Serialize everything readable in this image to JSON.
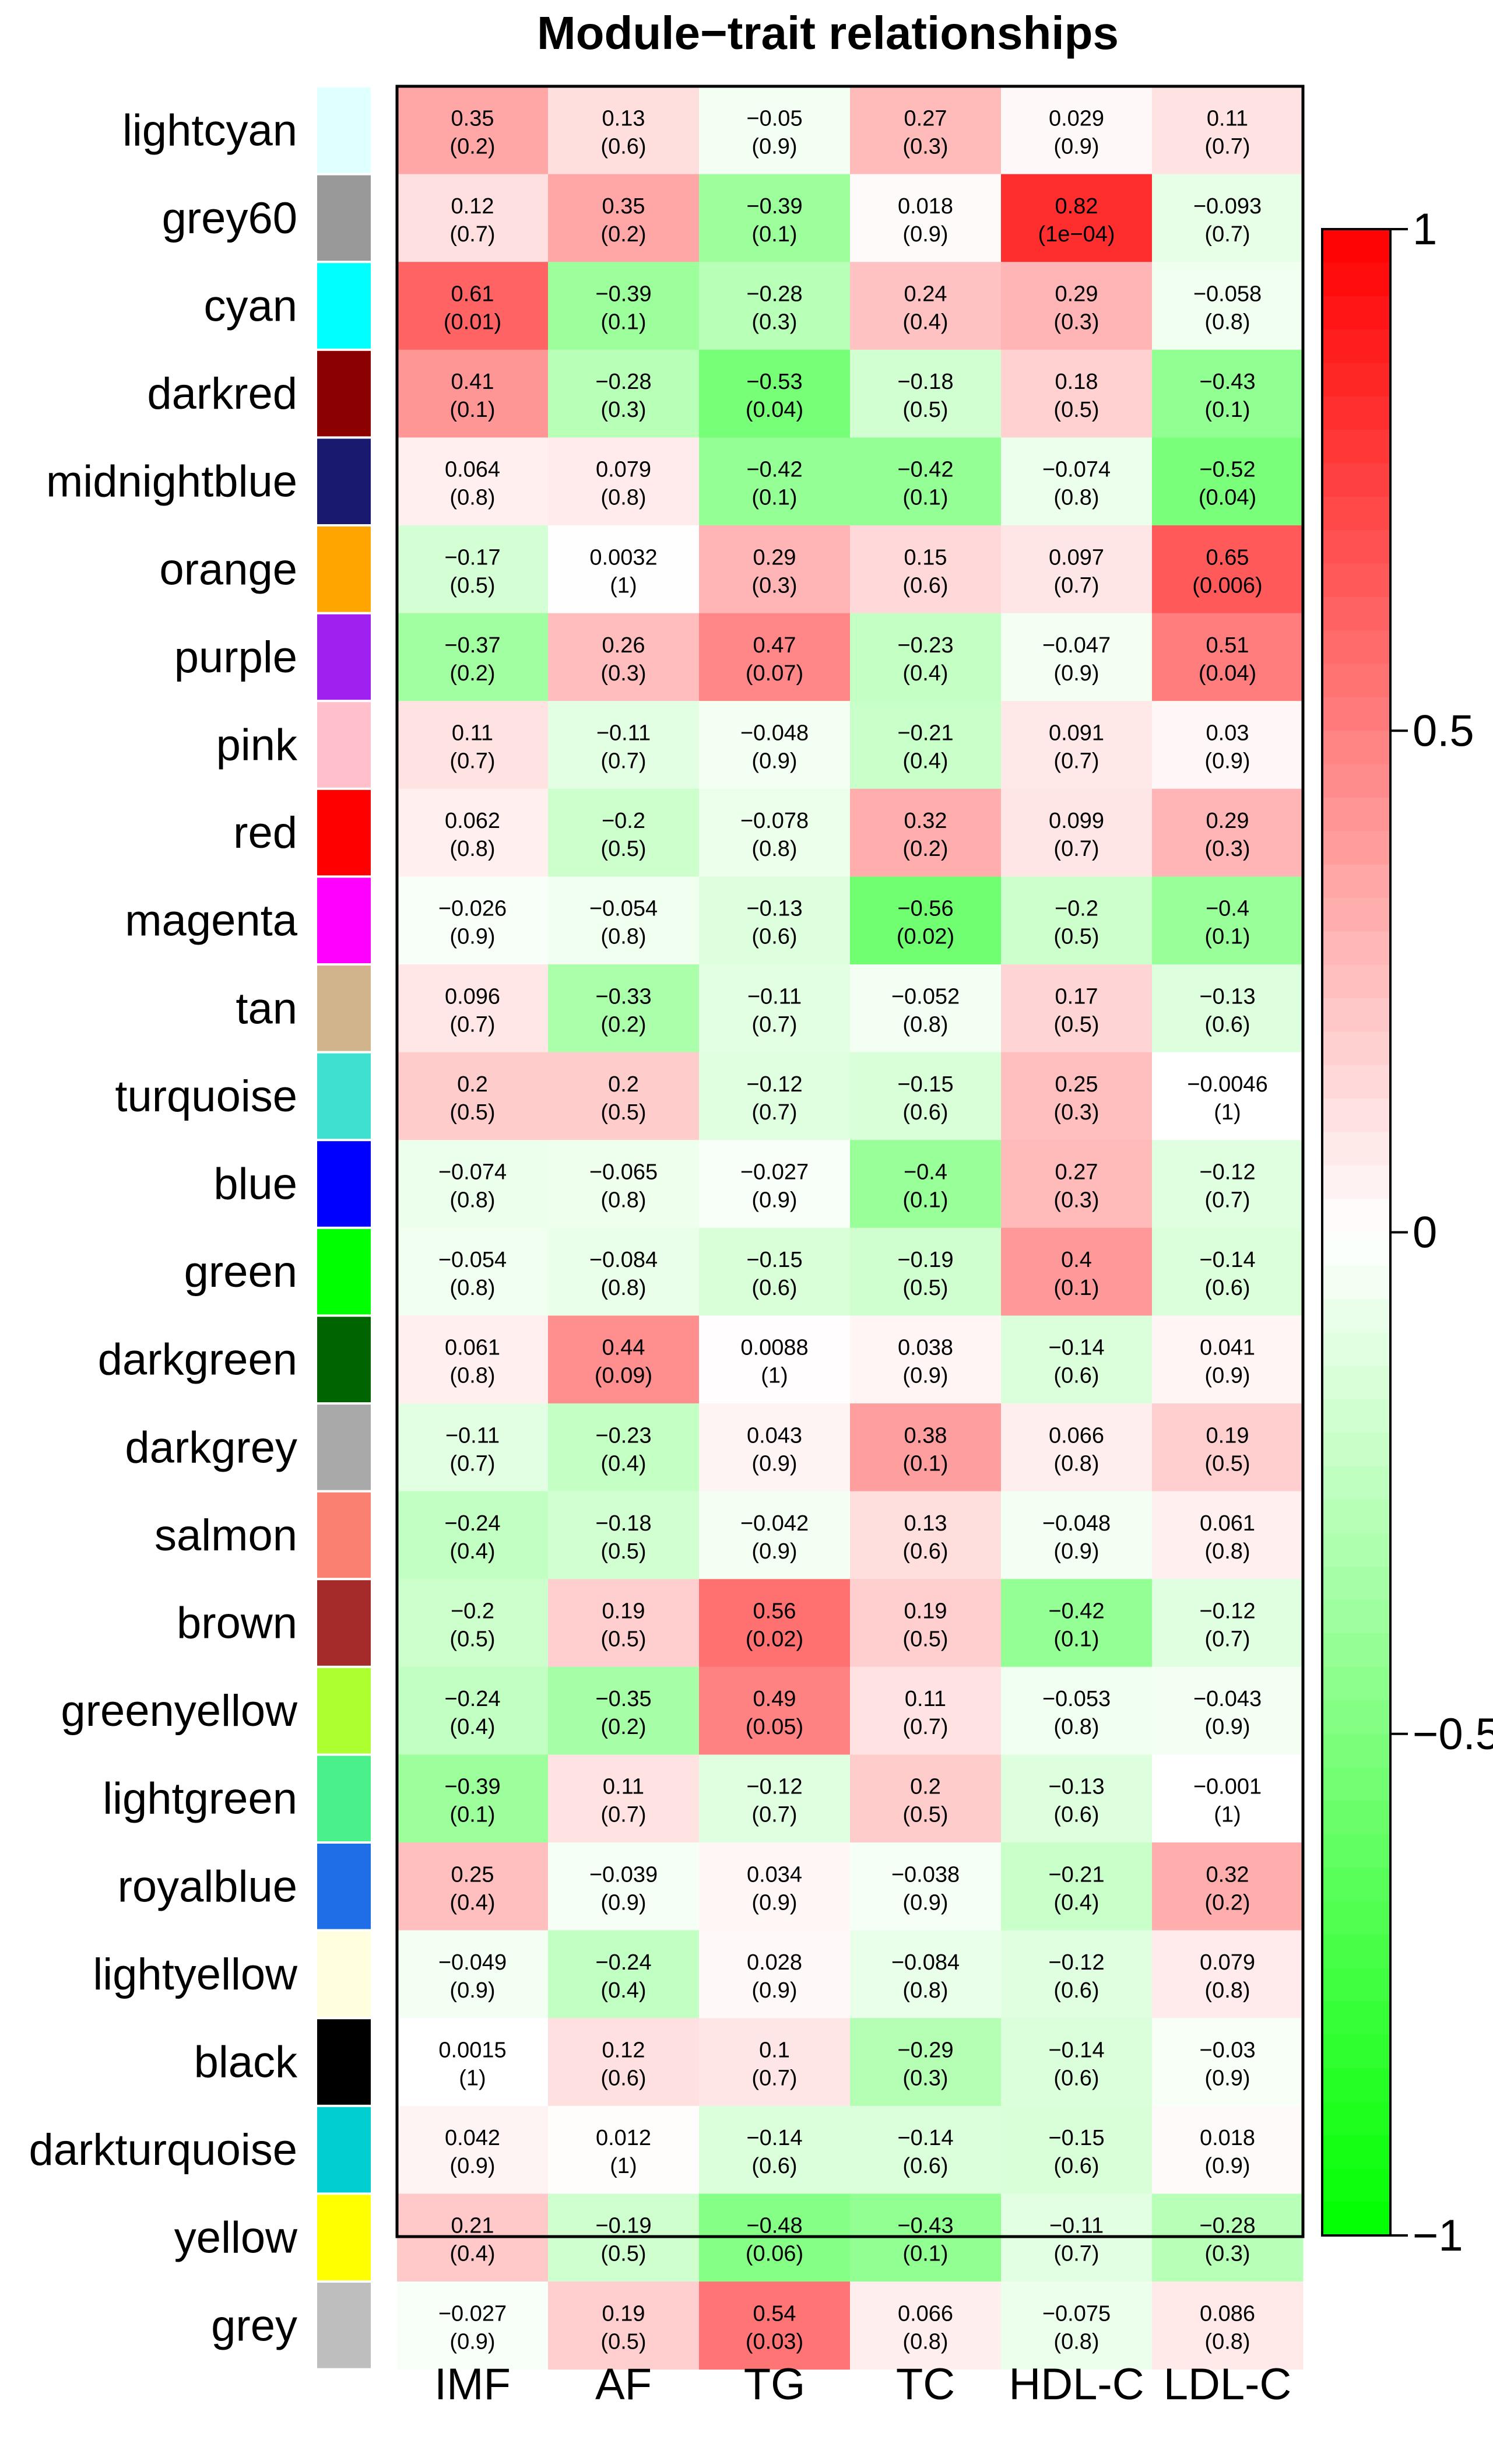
{
  "chart_data": {
    "type": "heatmap",
    "title": "Module−trait relationships",
    "traits": [
      "IMF",
      "AF",
      "TG",
      "TC",
      "HDL-C",
      "LDL-C"
    ],
    "modules": [
      {
        "name": "lightcyan",
        "color": "#e0ffff",
        "cor": [
          "0.35",
          "0.13",
          "−0.05",
          "0.27",
          "0.029",
          "0.11"
        ],
        "p": [
          "(0.2)",
          "(0.6)",
          "(0.9)",
          "(0.3)",
          "(0.9)",
          "(0.7)"
        ]
      },
      {
        "name": "grey60",
        "color": "#999999",
        "cor": [
          "0.12",
          "0.35",
          "−0.39",
          "0.018",
          "0.82",
          "−0.093"
        ],
        "p": [
          "(0.7)",
          "(0.2)",
          "(0.1)",
          "(0.9)",
          "(1e−04)",
          "(0.7)"
        ]
      },
      {
        "name": "cyan",
        "color": "#00ffff",
        "cor": [
          "0.61",
          "−0.39",
          "−0.28",
          "0.24",
          "0.29",
          "−0.058"
        ],
        "p": [
          "(0.01)",
          "(0.1)",
          "(0.3)",
          "(0.4)",
          "(0.3)",
          "(0.8)"
        ]
      },
      {
        "name": "darkred",
        "color": "#8b0000",
        "cor": [
          "0.41",
          "−0.28",
          "−0.53",
          "−0.18",
          "0.18",
          "−0.43"
        ],
        "p": [
          "(0.1)",
          "(0.3)",
          "(0.04)",
          "(0.5)",
          "(0.5)",
          "(0.1)"
        ]
      },
      {
        "name": "midnightblue",
        "color": "#191970",
        "cor": [
          "0.064",
          "0.079",
          "−0.42",
          "−0.42",
          "−0.074",
          "−0.52"
        ],
        "p": [
          "(0.8)",
          "(0.8)",
          "(0.1)",
          "(0.1)",
          "(0.8)",
          "(0.04)"
        ]
      },
      {
        "name": "orange",
        "color": "#ffa500",
        "cor": [
          "−0.17",
          "0.0032",
          "0.29",
          "0.15",
          "0.097",
          "0.65"
        ],
        "p": [
          "(0.5)",
          "(1)",
          "(0.3)",
          "(0.6)",
          "(0.7)",
          "(0.006)"
        ]
      },
      {
        "name": "purple",
        "color": "#a020f0",
        "cor": [
          "−0.37",
          "0.26",
          "0.47",
          "−0.23",
          "−0.047",
          "0.51"
        ],
        "p": [
          "(0.2)",
          "(0.3)",
          "(0.07)",
          "(0.4)",
          "(0.9)",
          "(0.04)"
        ]
      },
      {
        "name": "pink",
        "color": "#ffc0cb",
        "cor": [
          "0.11",
          "−0.11",
          "−0.048",
          "−0.21",
          "0.091",
          "0.03"
        ],
        "p": [
          "(0.7)",
          "(0.7)",
          "(0.9)",
          "(0.4)",
          "(0.7)",
          "(0.9)"
        ]
      },
      {
        "name": "red",
        "color": "#ff0000",
        "cor": [
          "0.062",
          "−0.2",
          "−0.078",
          "0.32",
          "0.099",
          "0.29"
        ],
        "p": [
          "(0.8)",
          "(0.5)",
          "(0.8)",
          "(0.2)",
          "(0.7)",
          "(0.3)"
        ]
      },
      {
        "name": "magenta",
        "color": "#ff00ff",
        "cor": [
          "−0.026",
          "−0.054",
          "−0.13",
          "−0.56",
          "−0.2",
          "−0.4"
        ],
        "p": [
          "(0.9)",
          "(0.8)",
          "(0.6)",
          "(0.02)",
          "(0.5)",
          "(0.1)"
        ]
      },
      {
        "name": "tan",
        "color": "#d2b48c",
        "cor": [
          "0.096",
          "−0.33",
          "−0.11",
          "−0.052",
          "0.17",
          "−0.13"
        ],
        "p": [
          "(0.7)",
          "(0.2)",
          "(0.7)",
          "(0.8)",
          "(0.5)",
          "(0.6)"
        ]
      },
      {
        "name": "turquoise",
        "color": "#40e0d0",
        "cor": [
          "0.2",
          "0.2",
          "−0.12",
          "−0.15",
          "0.25",
          "−0.0046"
        ],
        "p": [
          "(0.5)",
          "(0.5)",
          "(0.7)",
          "(0.6)",
          "(0.3)",
          "(1)"
        ]
      },
      {
        "name": "blue",
        "color": "#0000ff",
        "cor": [
          "−0.074",
          "−0.065",
          "−0.027",
          "−0.4",
          "0.27",
          "−0.12"
        ],
        "p": [
          "(0.8)",
          "(0.8)",
          "(0.9)",
          "(0.1)",
          "(0.3)",
          "(0.7)"
        ]
      },
      {
        "name": "green",
        "color": "#00ff00",
        "cor": [
          "−0.054",
          "−0.084",
          "−0.15",
          "−0.19",
          "0.4",
          "−0.14"
        ],
        "p": [
          "(0.8)",
          "(0.8)",
          "(0.6)",
          "(0.5)",
          "(0.1)",
          "(0.6)"
        ]
      },
      {
        "name": "darkgreen",
        "color": "#006400",
        "cor": [
          "0.061",
          "0.44",
          "0.0088",
          "0.038",
          "−0.14",
          "0.041"
        ],
        "p": [
          "(0.8)",
          "(0.09)",
          "(1)",
          "(0.9)",
          "(0.6)",
          "(0.9)"
        ]
      },
      {
        "name": "darkgrey",
        "color": "#a9a9a9",
        "cor": [
          "−0.11",
          "−0.23",
          "0.043",
          "0.38",
          "0.066",
          "0.19"
        ],
        "p": [
          "(0.7)",
          "(0.4)",
          "(0.9)",
          "(0.1)",
          "(0.8)",
          "(0.5)"
        ]
      },
      {
        "name": "salmon",
        "color": "#fa8072",
        "cor": [
          "−0.24",
          "−0.18",
          "−0.042",
          "0.13",
          "−0.048",
          "0.061"
        ],
        "p": [
          "(0.4)",
          "(0.5)",
          "(0.9)",
          "(0.6)",
          "(0.9)",
          "(0.8)"
        ]
      },
      {
        "name": "brown",
        "color": "#a52a2a",
        "cor": [
          "−0.2",
          "0.19",
          "0.56",
          "0.19",
          "−0.42",
          "−0.12"
        ],
        "p": [
          "(0.5)",
          "(0.5)",
          "(0.02)",
          "(0.5)",
          "(0.1)",
          "(0.7)"
        ]
      },
      {
        "name": "greenyellow",
        "color": "#adff2f",
        "cor": [
          "−0.24",
          "−0.35",
          "0.49",
          "0.11",
          "−0.053",
          "−0.043"
        ],
        "p": [
          "(0.4)",
          "(0.2)",
          "(0.05)",
          "(0.7)",
          "(0.8)",
          "(0.9)"
        ]
      },
      {
        "name": "lightgreen",
        "color": "#4af08a",
        "cor": [
          "−0.39",
          "0.11",
          "−0.12",
          "0.2",
          "−0.13",
          "−0.001"
        ],
        "p": [
          "(0.1)",
          "(0.7)",
          "(0.7)",
          "(0.5)",
          "(0.6)",
          "(1)"
        ]
      },
      {
        "name": "royalblue",
        "color": "#1e6ee8",
        "cor": [
          "0.25",
          "−0.039",
          "0.034",
          "−0.038",
          "−0.21",
          "0.32"
        ],
        "p": [
          "(0.4)",
          "(0.9)",
          "(0.9)",
          "(0.9)",
          "(0.4)",
          "(0.2)"
        ]
      },
      {
        "name": "lightyellow",
        "color": "#ffffe0",
        "cor": [
          "−0.049",
          "−0.24",
          "0.028",
          "−0.084",
          "−0.12",
          "0.079"
        ],
        "p": [
          "(0.9)",
          "(0.4)",
          "(0.9)",
          "(0.8)",
          "(0.6)",
          "(0.8)"
        ]
      },
      {
        "name": "black",
        "color": "#000000",
        "cor": [
          "0.0015",
          "0.12",
          "0.1",
          "−0.29",
          "−0.14",
          "−0.03"
        ],
        "p": [
          "(1)",
          "(0.6)",
          "(0.7)",
          "(0.3)",
          "(0.6)",
          "(0.9)"
        ]
      },
      {
        "name": "darkturquoise",
        "color": "#00ced1",
        "cor": [
          "0.042",
          "0.012",
          "−0.14",
          "−0.14",
          "−0.15",
          "0.018"
        ],
        "p": [
          "(0.9)",
          "(1)",
          "(0.6)",
          "(0.6)",
          "(0.6)",
          "(0.9)"
        ]
      },
      {
        "name": "yellow",
        "color": "#ffff00",
        "cor": [
          "0.21",
          "−0.19",
          "−0.48",
          "−0.43",
          "−0.11",
          "−0.28"
        ],
        "p": [
          "(0.4)",
          "(0.5)",
          "(0.06)",
          "(0.1)",
          "(0.7)",
          "(0.3)"
        ]
      },
      {
        "name": "grey",
        "color": "#bebebe",
        "cor": [
          "−0.027",
          "0.19",
          "0.54",
          "0.066",
          "−0.075",
          "0.086"
        ],
        "p": [
          "(0.9)",
          "(0.5)",
          "(0.03)",
          "(0.8)",
          "(0.8)",
          "(0.8)"
        ]
      }
    ],
    "colorbar": {
      "range": [
        -1,
        1
      ],
      "ticks": [
        1,
        0.5,
        0,
        -0.5,
        -1
      ],
      "tick_labels": [
        "1",
        "0.5",
        "0",
        "−0.5",
        "−1"
      ],
      "low_color": "#00ff00",
      "mid_color": "#ffffff",
      "high_color": "#ff0000"
    }
  }
}
